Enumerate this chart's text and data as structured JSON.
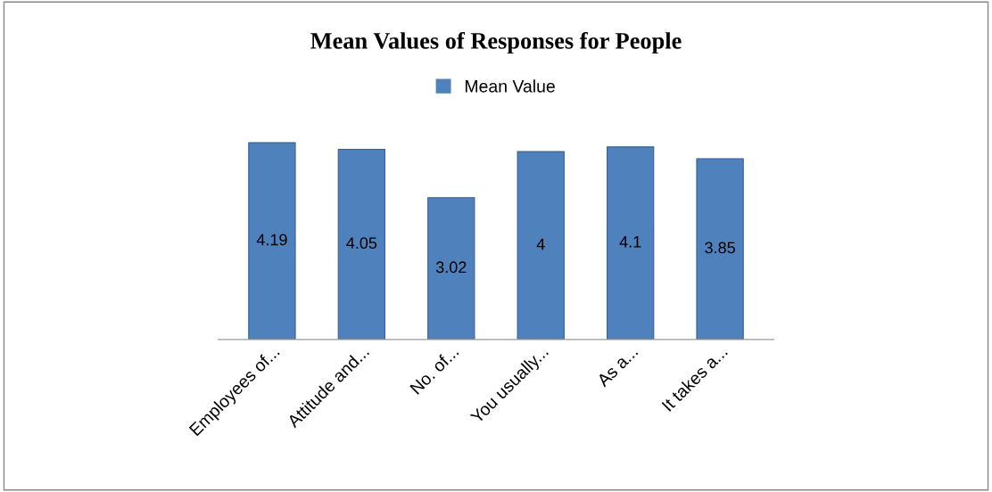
{
  "chart_data": {
    "type": "bar",
    "title": "Mean Values of Responses for People",
    "categories": [
      "Employees of...",
      "Attitude and...",
      "No. of...",
      "You usually...",
      "As a...",
      "It takes a..."
    ],
    "series": [
      {
        "name": "Mean Value",
        "color": "#4f81bd",
        "values": [
          4.19,
          4.05,
          3.02,
          4,
          4.1,
          3.85
        ]
      }
    ],
    "data_labels": true,
    "legend": "top",
    "grid": false,
    "tick_labels": "x"
  }
}
